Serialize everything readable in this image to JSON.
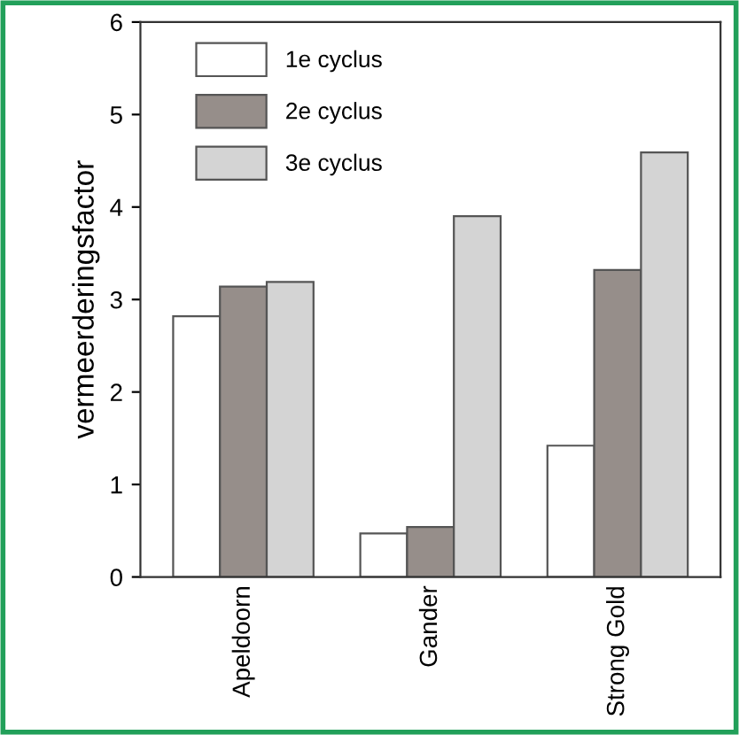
{
  "chart_data": {
    "type": "bar",
    "ylabel": "vermeerderingsfactor",
    "categories": [
      "Apeldoorn",
      "Gander",
      "Strong Gold"
    ],
    "series": [
      {
        "name": "1e cyclus",
        "color": "#ffffff",
        "values": [
          2.82,
          0.47,
          1.42
        ]
      },
      {
        "name": "2e cyclus",
        "color": "#968e8a",
        "values": [
          3.14,
          0.54,
          3.32
        ]
      },
      {
        "name": "3e cyclus",
        "color": "#d4d4d4",
        "values": [
          3.19,
          3.9,
          4.59
        ]
      }
    ],
    "ylim": [
      0,
      6
    ],
    "yticks": [
      0,
      1,
      2,
      3,
      4,
      5,
      6
    ],
    "grid": false,
    "legend": "top left"
  }
}
